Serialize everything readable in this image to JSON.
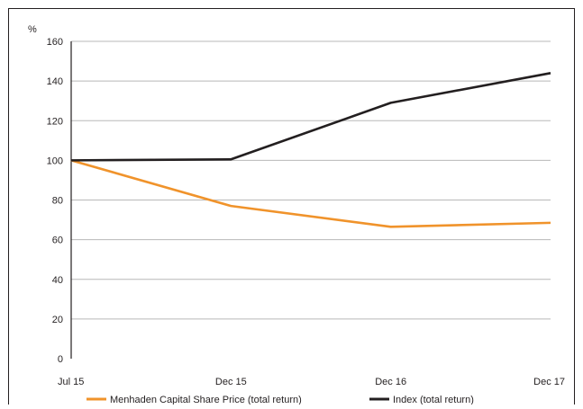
{
  "chart_data": {
    "type": "line",
    "ylabel": "%",
    "ylim": [
      0,
      160
    ],
    "yticks": [
      0,
      20,
      40,
      60,
      80,
      100,
      120,
      140,
      160
    ],
    "categories": [
      "Jul 15",
      "Dec 15",
      "Dec 16",
      "Dec 17"
    ],
    "grid": true,
    "legend_position": "bottom",
    "series": [
      {
        "name": "Menhaden Capital Share Price (total return)",
        "color": "#f0932b",
        "values": [
          100,
          77,
          66.5,
          68.5
        ]
      },
      {
        "name": "Index (total return)",
        "color": "#231f20",
        "values": [
          100,
          100.5,
          129,
          144
        ]
      }
    ]
  }
}
